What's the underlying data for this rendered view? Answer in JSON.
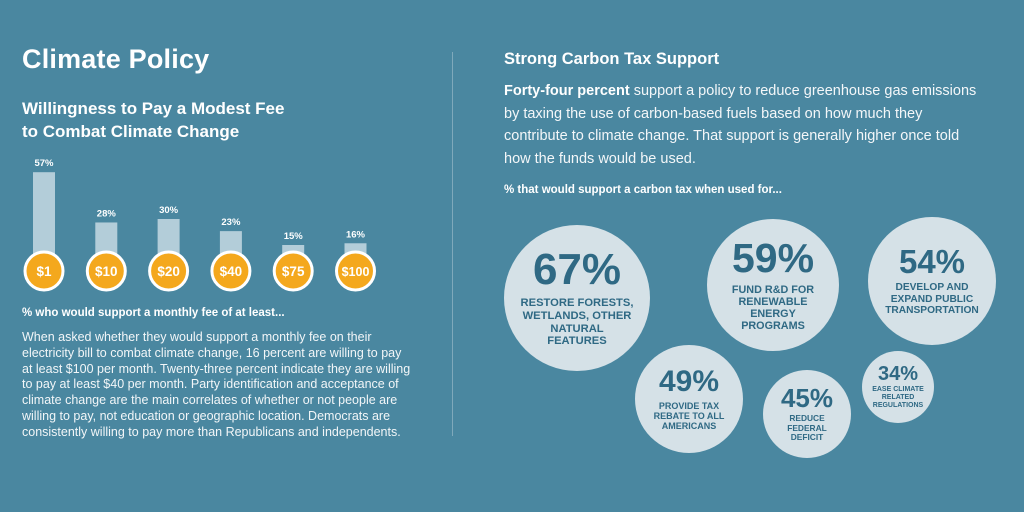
{
  "left": {
    "title": "Climate Policy",
    "chart_title_line1": "Willingness to Pay a Modest Fee",
    "chart_title_line2": "to Combat Climate Change",
    "caption": "% who would support a monthly fee of at least...",
    "body": "When asked whether they would support a monthly fee on their electricity bill to combat climate change, 16 percent are willing to pay at least $100 per month. Twenty-three percent indicate they are willing to pay at least $40 per month. Party identification and acceptance of climate change are the main correlates of whether or not people are willing to pay, not education or geographic location. Democrats are consistently willing to pay more than Republicans and independents."
  },
  "right": {
    "title": "Strong Carbon Tax Support",
    "para_bold": "Forty-four percent",
    "para_rest": " support a policy to reduce greenhouse gas emissions by taxing the use of carbon-based fuels based on how much they contribute to climate change. That support is generally higher once told how the funds would be used.",
    "caption": "% that would support a carbon tax when used for...",
    "bubbles": [
      {
        "pct": "67%",
        "label": [
          "Restore forests,",
          "wetlands, other",
          "natural",
          "features"
        ]
      },
      {
        "pct": "59%",
        "label": [
          "Fund R&D for",
          "renewable",
          "energy",
          "programs"
        ]
      },
      {
        "pct": "54%",
        "label": [
          "Develop and",
          "expand public",
          "transportation"
        ]
      },
      {
        "pct": "49%",
        "label": [
          "Provide tax",
          "rebate to all",
          "Americans"
        ]
      },
      {
        "pct": "45%",
        "label": [
          "Reduce",
          "federal",
          "deficit"
        ]
      },
      {
        "pct": "34%",
        "label": [
          "Ease climate",
          "related",
          "regulations"
        ]
      }
    ]
  },
  "colors": {
    "background": "#4a87a0",
    "bar": "#b3cdd9",
    "badge": "#f4a81d",
    "bubble": "#d5e1e7",
    "bubble_text": "#2f6984"
  },
  "chart_data": [
    {
      "type": "bar",
      "categories": [
        "$1",
        "$10",
        "$20",
        "$40",
        "$75",
        "$100"
      ],
      "values": [
        57,
        28,
        30,
        23,
        15,
        16
      ],
      "value_labels": [
        "57%",
        "28%",
        "30%",
        "23%",
        "15%",
        "16%"
      ],
      "title": "Willingness to Pay a Modest Fee to Combat Climate Change",
      "xlabel": "% who would support a monthly fee of at least...",
      "ylabel": "",
      "ylim": [
        0,
        60
      ],
      "grid": false
    },
    {
      "type": "bubble",
      "categories": [
        "Restore forests, wetlands, other natural features",
        "Fund R&D for renewable energy programs",
        "Develop and expand public transportation",
        "Provide tax rebate to all Americans",
        "Reduce federal deficit",
        "Ease climate related regulations"
      ],
      "values": [
        67,
        59,
        54,
        49,
        45,
        34
      ],
      "title": "% that would support a carbon tax when used for..."
    }
  ]
}
